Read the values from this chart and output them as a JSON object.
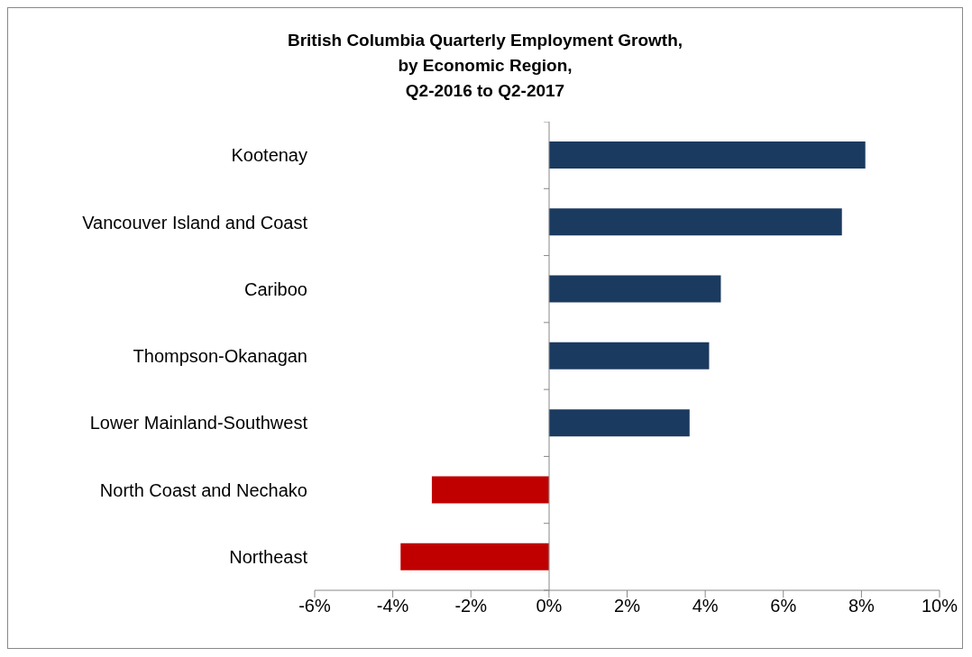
{
  "chart_data": {
    "type": "bar",
    "orientation": "horizontal",
    "title": "British Columbia Quarterly Employment Growth,\nby Economic Region,\nQ2-2016 to Q2-2017",
    "categories": [
      "Kootenay",
      "Vancouver Island and Coast",
      "Cariboo",
      "Thompson-Okanagan",
      "Lower Mainland-Southwest",
      "North Coast and Nechako",
      "Northeast"
    ],
    "values": [
      8.1,
      7.5,
      4.4,
      4.1,
      3.6,
      -3.0,
      -3.8
    ],
    "colors": [
      "#1b3a5f",
      "#1b3a5f",
      "#1b3a5f",
      "#1b3a5f",
      "#1b3a5f",
      "#c00000",
      "#c00000"
    ],
    "xlim": [
      -6,
      10
    ],
    "xticks": [
      {
        "value": -6,
        "label": "-6%"
      },
      {
        "value": -4,
        "label": "-4%"
      },
      {
        "value": -2,
        "label": "-2%"
      },
      {
        "value": 0,
        "label": "0%"
      },
      {
        "value": 2,
        "label": "2%"
      },
      {
        "value": 4,
        "label": "4%"
      },
      {
        "value": 6,
        "label": "6%"
      },
      {
        "value": 8,
        "label": "8%"
      },
      {
        "value": 10,
        "label": "10%"
      }
    ],
    "xlabel": null
  }
}
